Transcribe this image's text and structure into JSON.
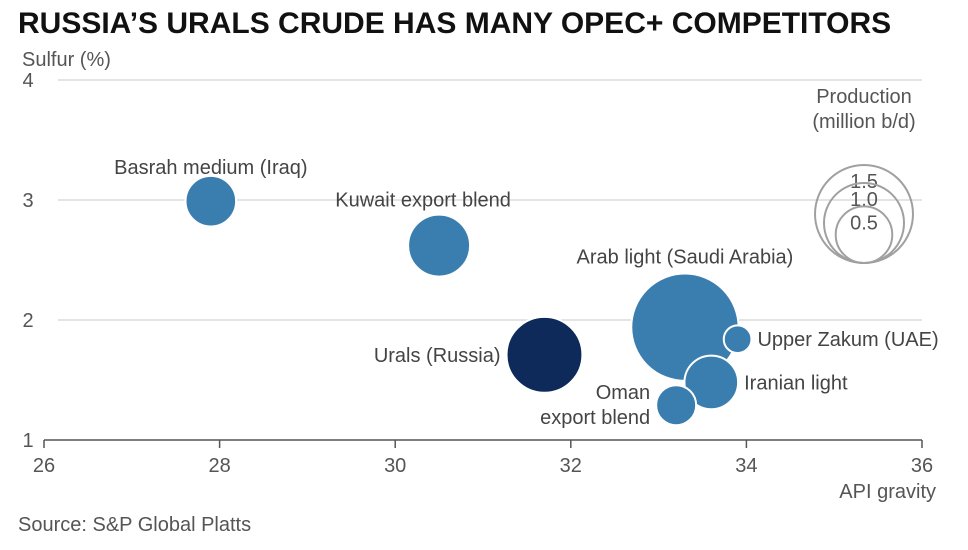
{
  "chart_data": {
    "type": "scatter",
    "title": "RUSSIA’S URALS CRUDE HAS MANY OPEC+ COMPETITORS",
    "xlabel": "API gravity",
    "ylabel": "Sulfur (%)",
    "xlim": [
      26,
      36
    ],
    "ylim": [
      1,
      4
    ],
    "xticks": [
      26,
      28,
      30,
      32,
      34,
      36
    ],
    "yticks": [
      1,
      2,
      3,
      4
    ],
    "grid": "horizontal",
    "size_legend": {
      "title_line1": "Production",
      "title_line2": "(million b/d)",
      "values": [
        1.5,
        1.0,
        0.5
      ],
      "labels": [
        "1.5",
        "1.0",
        "0.5"
      ],
      "color": "#a0a0a0"
    },
    "points": [
      {
        "label": "Basrah medium (Iraq)",
        "x": 27.9,
        "y": 2.99,
        "size": 0.4,
        "color": "#3a7eb0"
      },
      {
        "label": "Kuwait export blend",
        "x": 30.5,
        "y": 2.62,
        "size": 0.6,
        "color": "#3a7eb0"
      },
      {
        "label": "Arab light (Saudi Arabia)",
        "x": 33.3,
        "y": 1.94,
        "size": 1.8,
        "color": "#3a7eb0"
      },
      {
        "label": "Upper Zakum (UAE)",
        "x": 33.9,
        "y": 1.84,
        "size": 0.12,
        "color": "#3a7eb0"
      },
      {
        "label": "Urals (Russia)",
        "x": 31.7,
        "y": 1.71,
        "size": 0.9,
        "color": "#0d2a5a"
      },
      {
        "label": "Iranian light",
        "x": 33.6,
        "y": 1.48,
        "size": 0.45,
        "color": "#3a7eb0"
      },
      {
        "label": "Oman\nexport blend",
        "x": 33.2,
        "y": 1.29,
        "size": 0.25,
        "color": "#3a7eb0"
      }
    ]
  },
  "source": "Source: S&P Global Platts"
}
